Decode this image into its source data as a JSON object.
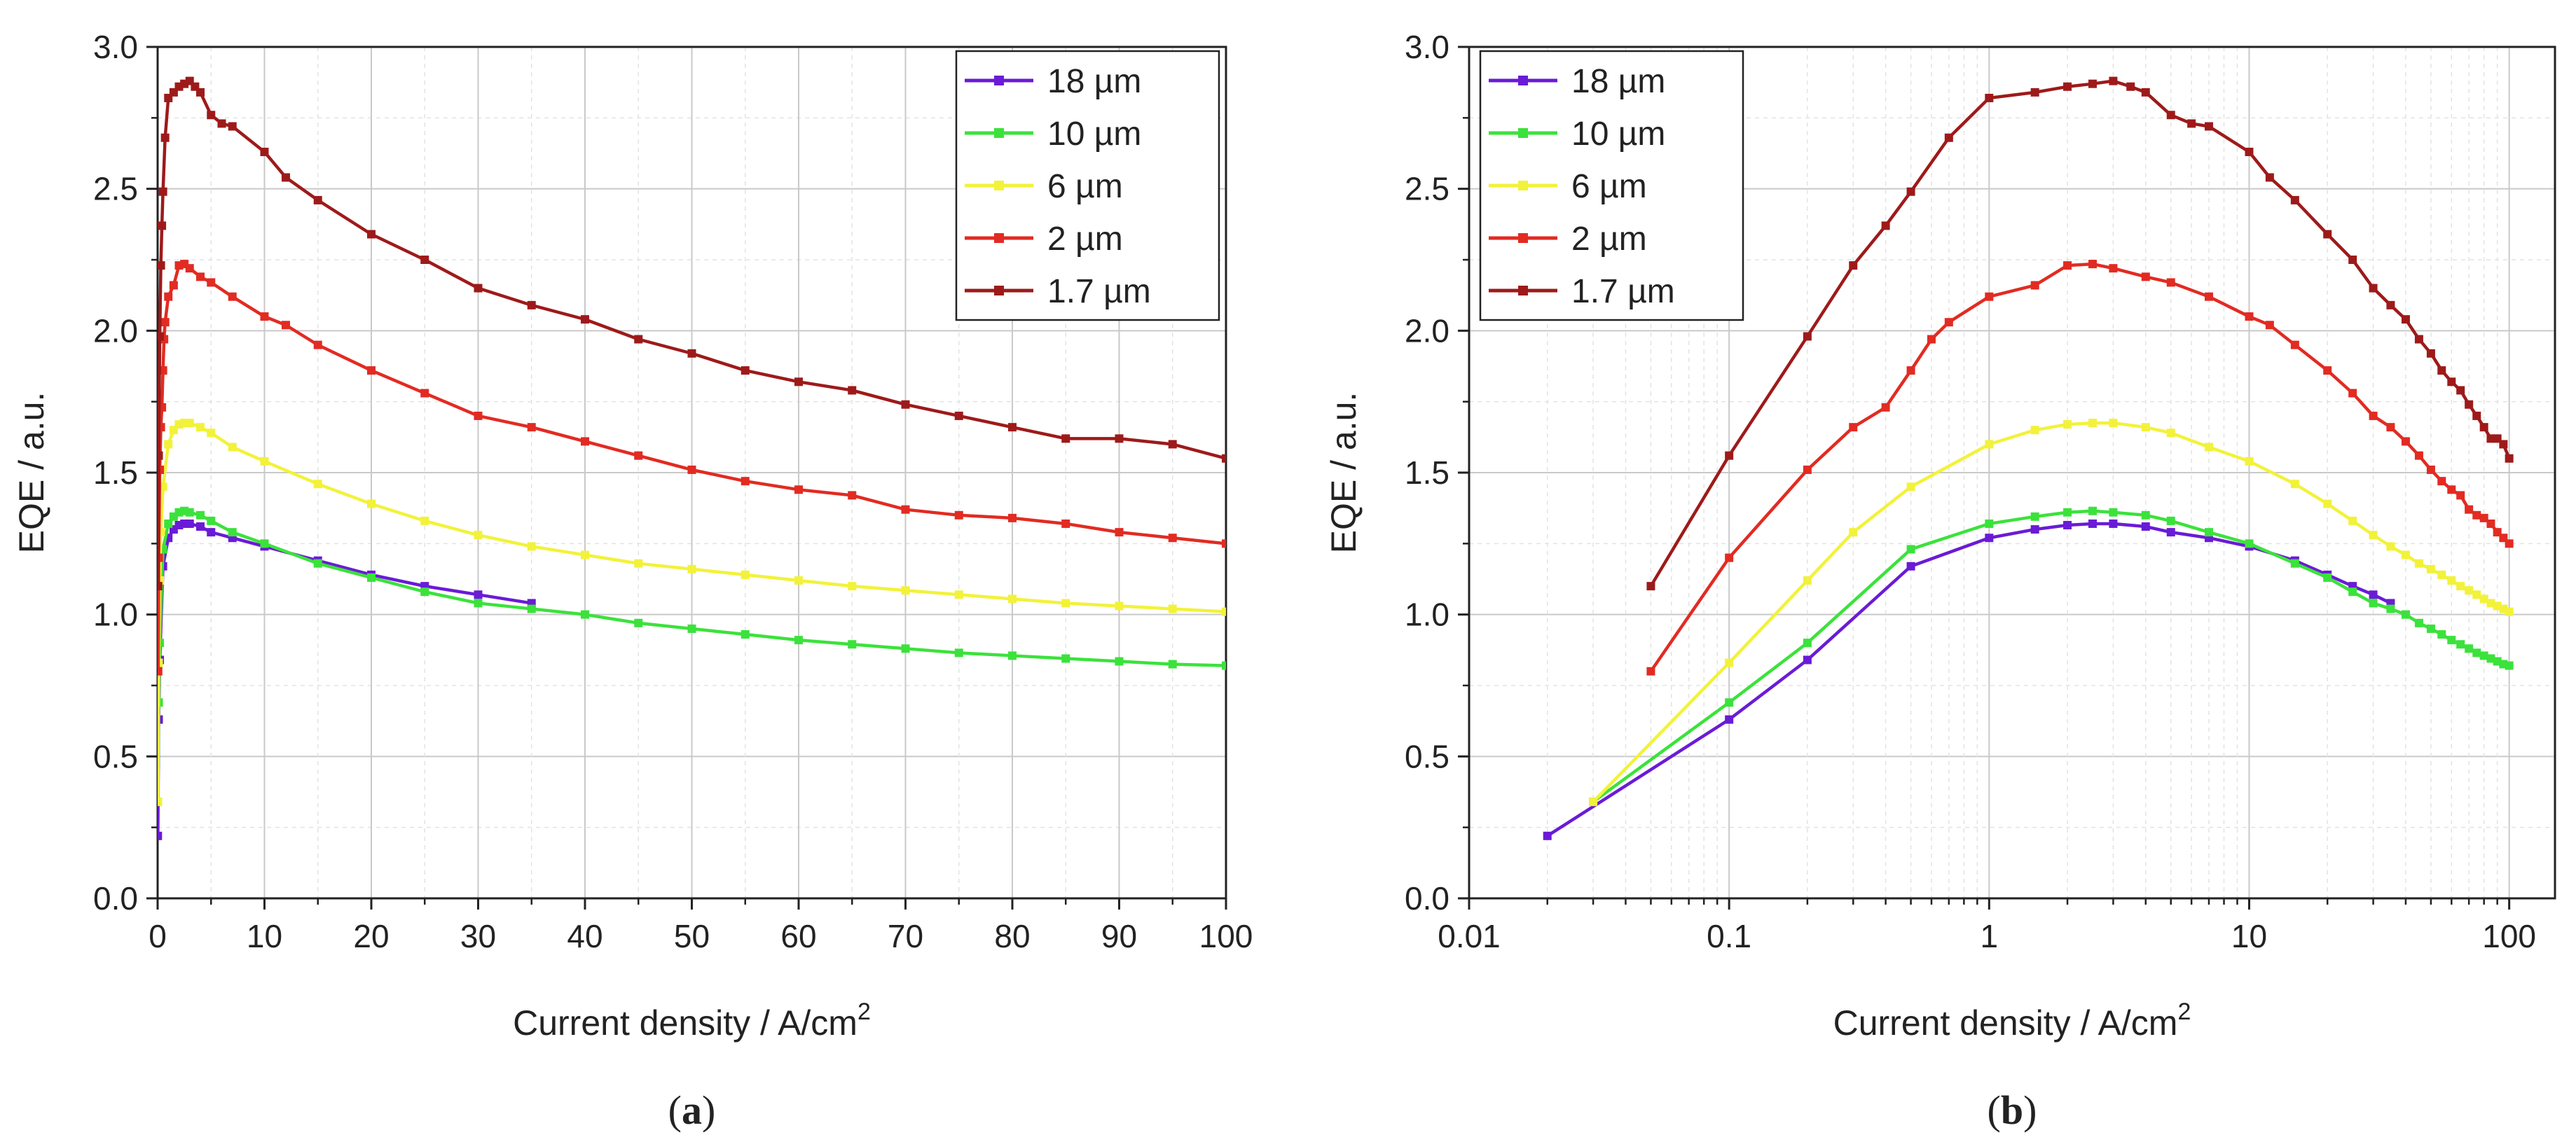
{
  "figure": {
    "panels": [
      {
        "id": "a",
        "label_open": "(",
        "label_letter": "a",
        "label_close": ")",
        "xlabel": "Current density / A/cm",
        "xlabel_sup": "2",
        "ylabel": "EQE / a.u.",
        "xticks": [
          "0",
          "10",
          "20",
          "30",
          "40",
          "50",
          "60",
          "70",
          "80",
          "90",
          "100"
        ],
        "yticks": [
          "0.0",
          "0.5",
          "1.0",
          "1.5",
          "2.0",
          "2.5",
          "3.0"
        ]
      },
      {
        "id": "b",
        "label_open": "(",
        "label_letter": "b",
        "label_close": ")",
        "xlabel": "Current density / A/cm",
        "xlabel_sup": "2",
        "ylabel": "EQE / a.u.",
        "xticks": [
          "0.01",
          "0.1",
          "1",
          "10",
          "100"
        ],
        "yticks": [
          "0.0",
          "0.5",
          "1.0",
          "1.5",
          "2.0",
          "2.5",
          "3.0"
        ]
      }
    ]
  },
  "chart_data": [
    {
      "type": "line",
      "panel": "a",
      "xscale": "linear",
      "xlim": [
        0,
        100
      ],
      "ylim": [
        0,
        3.0
      ],
      "xlabel": "Current density / A/cm2",
      "ylabel": "EQE / a.u.",
      "grid": true,
      "legend_position": "top-right",
      "series": [
        {
          "name": "18 µm",
          "color": "#6a1bd6",
          "x": [
            0.02,
            0.1,
            0.2,
            0.5,
            1,
            1.5,
            2,
            2.5,
            3,
            4,
            5,
            7,
            10,
            15,
            20,
            25,
            30,
            35
          ],
          "y": [
            0.22,
            0.63,
            0.84,
            1.17,
            1.27,
            1.3,
            1.315,
            1.32,
            1.32,
            1.31,
            1.29,
            1.27,
            1.24,
            1.19,
            1.14,
            1.1,
            1.07,
            1.04
          ]
        },
        {
          "name": "10 µm",
          "color": "#3be23b",
          "x": [
            0.03,
            0.1,
            0.2,
            0.5,
            1,
            1.5,
            2,
            2.5,
            3,
            4,
            5,
            7,
            10,
            15,
            20,
            25,
            30,
            35,
            40,
            45,
            50,
            55,
            60,
            65,
            70,
            75,
            80,
            85,
            90,
            95,
            100
          ],
          "y": [
            0.34,
            0.69,
            0.9,
            1.23,
            1.32,
            1.345,
            1.36,
            1.365,
            1.36,
            1.35,
            1.33,
            1.29,
            1.25,
            1.18,
            1.13,
            1.08,
            1.04,
            1.02,
            1.0,
            0.97,
            0.95,
            0.93,
            0.91,
            0.895,
            0.88,
            0.865,
            0.855,
            0.845,
            0.835,
            0.825,
            0.82
          ]
        },
        {
          "name": "6 µm",
          "color": "#f2f23a",
          "x": [
            0.03,
            0.1,
            0.2,
            0.3,
            0.5,
            1,
            1.5,
            2,
            2.5,
            3,
            4,
            5,
            7,
            10,
            15,
            20,
            25,
            30,
            35,
            40,
            45,
            50,
            55,
            60,
            65,
            70,
            75,
            80,
            85,
            90,
            95,
            100
          ],
          "y": [
            0.34,
            0.83,
            1.12,
            1.29,
            1.45,
            1.6,
            1.65,
            1.67,
            1.675,
            1.675,
            1.66,
            1.64,
            1.59,
            1.54,
            1.46,
            1.39,
            1.33,
            1.28,
            1.24,
            1.21,
            1.18,
            1.16,
            1.14,
            1.12,
            1.1,
            1.085,
            1.07,
            1.055,
            1.04,
            1.03,
            1.02,
            1.01
          ]
        },
        {
          "name": "2 µm",
          "color": "#e22b22",
          "x": [
            0.05,
            0.1,
            0.2,
            0.3,
            0.4,
            0.5,
            0.6,
            0.7,
            1,
            1.5,
            2,
            2.5,
            3,
            4,
            5,
            7,
            10,
            12,
            15,
            20,
            25,
            30,
            35,
            40,
            45,
            50,
            55,
            60,
            65,
            70,
            75,
            80,
            85,
            90,
            95,
            100
          ],
          "y": [
            0.8,
            1.2,
            1.51,
            1.66,
            1.73,
            1.86,
            1.97,
            2.03,
            2.12,
            2.16,
            2.23,
            2.235,
            2.22,
            2.19,
            2.17,
            2.12,
            2.05,
            2.02,
            1.95,
            1.86,
            1.78,
            1.7,
            1.66,
            1.61,
            1.56,
            1.51,
            1.47,
            1.44,
            1.42,
            1.37,
            1.35,
            1.34,
            1.32,
            1.29,
            1.27,
            1.25
          ]
        },
        {
          "name": "1.7 µm",
          "color": "#9e1a1a",
          "x": [
            0.05,
            0.1,
            0.2,
            0.3,
            0.4,
            0.5,
            0.7,
            1,
            1.5,
            2,
            2.5,
            3,
            3.5,
            4,
            5,
            6,
            7,
            10,
            12,
            15,
            20,
            25,
            30,
            35,
            40,
            45,
            50,
            55,
            60,
            65,
            70,
            75,
            80,
            85,
            90,
            95,
            100
          ],
          "y": [
            1.1,
            1.56,
            1.98,
            2.23,
            2.37,
            2.49,
            2.68,
            2.82,
            2.84,
            2.86,
            2.87,
            2.88,
            2.86,
            2.84,
            2.76,
            2.73,
            2.72,
            2.63,
            2.54,
            2.46,
            2.34,
            2.25,
            2.15,
            2.09,
            2.04,
            1.97,
            1.92,
            1.86,
            1.82,
            1.79,
            1.74,
            1.7,
            1.66,
            1.62,
            1.62,
            1.6,
            1.55
          ]
        }
      ]
    },
    {
      "type": "line",
      "panel": "b",
      "xscale": "log",
      "xlim": [
        0.01,
        150
      ],
      "ylim": [
        0,
        3.0
      ],
      "xlabel": "Current density / A/cm2",
      "ylabel": "EQE / a.u.",
      "grid": true,
      "legend_position": "top-left",
      "series": [
        {
          "name": "18 µm",
          "color": "#6a1bd6",
          "x": [
            0.02,
            0.1,
            0.2,
            0.5,
            1,
            1.5,
            2,
            2.5,
            3,
            4,
            5,
            7,
            10,
            15,
            20,
            25,
            30,
            35
          ],
          "y": [
            0.22,
            0.63,
            0.84,
            1.17,
            1.27,
            1.3,
            1.315,
            1.32,
            1.32,
            1.31,
            1.29,
            1.27,
            1.24,
            1.19,
            1.14,
            1.1,
            1.07,
            1.04
          ]
        },
        {
          "name": "10 µm",
          "color": "#3be23b",
          "x": [
            0.03,
            0.1,
            0.2,
            0.5,
            1,
            1.5,
            2,
            2.5,
            3,
            4,
            5,
            7,
            10,
            15,
            20,
            25,
            30,
            35,
            40,
            45,
            50,
            55,
            60,
            65,
            70,
            75,
            80,
            85,
            90,
            95,
            100
          ],
          "y": [
            0.34,
            0.69,
            0.9,
            1.23,
            1.32,
            1.345,
            1.36,
            1.365,
            1.36,
            1.35,
            1.33,
            1.29,
            1.25,
            1.18,
            1.13,
            1.08,
            1.04,
            1.02,
            1.0,
            0.97,
            0.95,
            0.93,
            0.91,
            0.895,
            0.88,
            0.865,
            0.855,
            0.845,
            0.835,
            0.825,
            0.82
          ]
        },
        {
          "name": "6 µm",
          "color": "#f2f23a",
          "x": [
            0.03,
            0.1,
            0.2,
            0.3,
            0.5,
            1,
            1.5,
            2,
            2.5,
            3,
            4,
            5,
            7,
            10,
            15,
            20,
            25,
            30,
            35,
            40,
            45,
            50,
            55,
            60,
            65,
            70,
            75,
            80,
            85,
            90,
            95,
            100
          ],
          "y": [
            0.34,
            0.83,
            1.12,
            1.29,
            1.45,
            1.6,
            1.65,
            1.67,
            1.675,
            1.675,
            1.66,
            1.64,
            1.59,
            1.54,
            1.46,
            1.39,
            1.33,
            1.28,
            1.24,
            1.21,
            1.18,
            1.16,
            1.14,
            1.12,
            1.1,
            1.085,
            1.07,
            1.055,
            1.04,
            1.03,
            1.02,
            1.01
          ]
        },
        {
          "name": "2 µm",
          "color": "#e22b22",
          "x": [
            0.05,
            0.1,
            0.2,
            0.3,
            0.4,
            0.5,
            0.6,
            0.7,
            1,
            1.5,
            2,
            2.5,
            3,
            4,
            5,
            7,
            10,
            12,
            15,
            20,
            25,
            30,
            35,
            40,
            45,
            50,
            55,
            60,
            65,
            70,
            75,
            80,
            85,
            90,
            95,
            100
          ],
          "y": [
            0.8,
            1.2,
            1.51,
            1.66,
            1.73,
            1.86,
            1.97,
            2.03,
            2.12,
            2.16,
            2.23,
            2.235,
            2.22,
            2.19,
            2.17,
            2.12,
            2.05,
            2.02,
            1.95,
            1.86,
            1.78,
            1.7,
            1.66,
            1.61,
            1.56,
            1.51,
            1.47,
            1.44,
            1.42,
            1.37,
            1.35,
            1.34,
            1.32,
            1.29,
            1.27,
            1.25
          ]
        },
        {
          "name": "1.7 µm",
          "color": "#9e1a1a",
          "x": [
            0.05,
            0.1,
            0.2,
            0.3,
            0.4,
            0.5,
            0.7,
            1,
            1.5,
            2,
            2.5,
            3,
            3.5,
            4,
            5,
            6,
            7,
            10,
            12,
            15,
            20,
            25,
            30,
            35,
            40,
            45,
            50,
            55,
            60,
            65,
            70,
            75,
            80,
            85,
            90,
            95,
            100
          ],
          "y": [
            1.1,
            1.56,
            1.98,
            2.23,
            2.37,
            2.49,
            2.68,
            2.82,
            2.84,
            2.86,
            2.87,
            2.88,
            2.86,
            2.84,
            2.76,
            2.73,
            2.72,
            2.63,
            2.54,
            2.46,
            2.34,
            2.25,
            2.15,
            2.09,
            2.04,
            1.97,
            1.92,
            1.86,
            1.82,
            1.79,
            1.74,
            1.7,
            1.66,
            1.62,
            1.62,
            1.6,
            1.55
          ]
        }
      ]
    }
  ]
}
